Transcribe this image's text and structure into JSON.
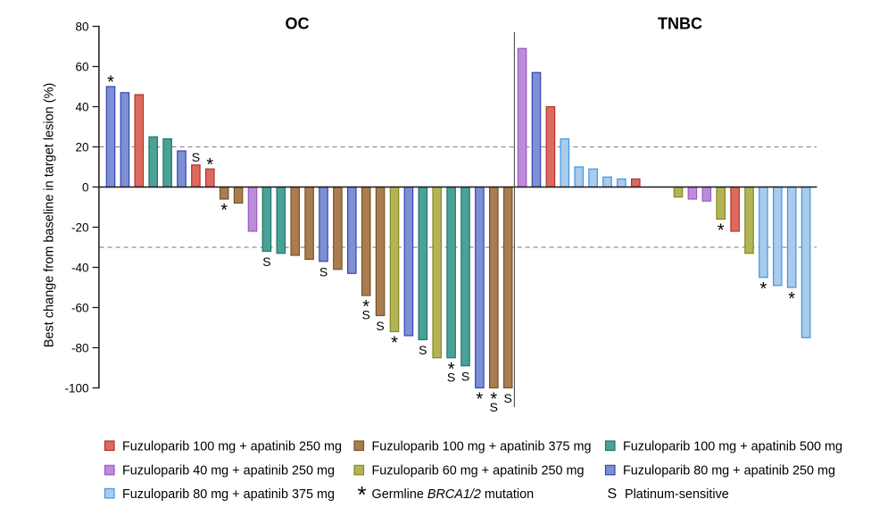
{
  "chart_data": {
    "type": "bar",
    "title": "",
    "ylabel": "Best change from baseline in target lesion (%)",
    "ylim": [
      -100,
      80
    ],
    "yticks": [
      80,
      60,
      40,
      20,
      0,
      -20,
      -40,
      -60,
      -80,
      -100
    ],
    "reference_lines": [
      20,
      -30
    ],
    "series": {
      "f100a250": {
        "label": "Fuzuloparib 100 mg + apatinib 250 mg",
        "fill": "#DC6A60",
        "edge": "#B23327"
      },
      "f100a375": {
        "label": "Fuzuloparib 100 mg + apatinib 375 mg",
        "fill": "#A97D50",
        "edge": "#7A5224"
      },
      "f100a500": {
        "label": "Fuzuloparib 100 mg + apatinib 500 mg",
        "fill": "#4AA198",
        "edge": "#217568"
      },
      "f40a250": {
        "label": "Fuzuloparib 40 mg + apatinib 250 mg",
        "fill": "#BC8CD9",
        "edge": "#9A58C8"
      },
      "f60a250": {
        "label": "Fuzuloparib 60 mg + apatinib 250 mg",
        "fill": "#B3B455",
        "edge": "#85881F"
      },
      "f80a250": {
        "label": "Fuzuloparib 80 mg + apatinib 250 mg",
        "fill": "#7E8FD3",
        "edge": "#3544B5"
      },
      "f80a375": {
        "label": "Fuzuloparib 80 mg + apatinib 375 mg",
        "fill": "#A9CBEC",
        "edge": "#3F95E4"
      }
    },
    "markers": {
      "asterisk": {
        "symbol": "*",
        "label_prefix": "Germline ",
        "label_italic": "BRCA1/2",
        "label_suffix": " mutation"
      },
      "platinum": {
        "symbol": "S",
        "label": "Platinum-sensitive"
      }
    },
    "legend_rows": [
      [
        "f100a250",
        "f100a375",
        "f100a500"
      ],
      [
        "f40a250",
        "f60a250",
        "f80a250"
      ],
      [
        "f80a375",
        "asterisk",
        "platinum"
      ]
    ],
    "panels": [
      {
        "title": "OC",
        "bars": [
          {
            "value": 50,
            "series": "f80a250",
            "marks": [
              "*"
            ]
          },
          {
            "value": 47,
            "series": "f80a250",
            "marks": []
          },
          {
            "value": 46,
            "series": "f100a250",
            "marks": []
          },
          {
            "value": 25,
            "series": "f100a500",
            "marks": []
          },
          {
            "value": 24,
            "series": "f100a500",
            "marks": []
          },
          {
            "value": 18,
            "series": "f80a250",
            "marks": []
          },
          {
            "value": 11,
            "series": "f100a250",
            "marks": [
              "S"
            ]
          },
          {
            "value": 9,
            "series": "f100a250",
            "marks": [
              "*"
            ]
          },
          {
            "value": -6,
            "series": "f100a375",
            "marks": [
              "*"
            ]
          },
          {
            "value": -8,
            "series": "f100a375",
            "marks": []
          },
          {
            "value": -22,
            "series": "f40a250",
            "marks": []
          },
          {
            "value": -32,
            "series": "f100a500",
            "marks": [
              "S"
            ]
          },
          {
            "value": -33,
            "series": "f100a500",
            "marks": []
          },
          {
            "value": -34,
            "series": "f100a375",
            "marks": []
          },
          {
            "value": -36,
            "series": "f100a375",
            "marks": []
          },
          {
            "value": -37,
            "series": "f80a250",
            "marks": [
              "S"
            ]
          },
          {
            "value": -41,
            "series": "f100a375",
            "marks": []
          },
          {
            "value": -43,
            "series": "f80a250",
            "marks": []
          },
          {
            "value": -54,
            "series": "f100a375",
            "marks": [
              "*",
              "S"
            ]
          },
          {
            "value": -64,
            "series": "f100a375",
            "marks": [
              "S"
            ]
          },
          {
            "value": -72,
            "series": "f60a250",
            "marks": [
              "*"
            ]
          },
          {
            "value": -74,
            "series": "f80a250",
            "marks": []
          },
          {
            "value": -76,
            "series": "f100a500",
            "marks": [
              "S"
            ]
          },
          {
            "value": -85,
            "series": "f60a250",
            "marks": []
          },
          {
            "value": -85,
            "series": "f100a500",
            "marks": [
              "*",
              "S"
            ]
          },
          {
            "value": -89,
            "series": "f100a500",
            "marks": [
              "S"
            ]
          },
          {
            "value": -100,
            "series": "f80a250",
            "marks": [
              "*"
            ]
          },
          {
            "value": -100,
            "series": "f100a375",
            "marks": [
              "*",
              "S"
            ]
          },
          {
            "value": -100,
            "series": "f100a375",
            "marks": [
              "S"
            ]
          }
        ]
      },
      {
        "title": "TNBC",
        "gap_after_index": 8,
        "gap_slots": 2,
        "bars": [
          {
            "value": 69,
            "series": "f40a250",
            "marks": []
          },
          {
            "value": 57,
            "series": "f80a250",
            "marks": []
          },
          {
            "value": 40,
            "series": "f100a250",
            "marks": []
          },
          {
            "value": 24,
            "series": "f80a375",
            "marks": []
          },
          {
            "value": 10,
            "series": "f80a375",
            "marks": []
          },
          {
            "value": 9,
            "series": "f80a375",
            "marks": []
          },
          {
            "value": 5,
            "series": "f80a375",
            "marks": []
          },
          {
            "value": 4,
            "series": "f80a375",
            "marks": []
          },
          {
            "value": 4,
            "series": "f100a250",
            "marks": []
          },
          {
            "value": -5,
            "series": "f60a250",
            "marks": []
          },
          {
            "value": -6,
            "series": "f40a250",
            "marks": []
          },
          {
            "value": -7,
            "series": "f40a250",
            "marks": []
          },
          {
            "value": -16,
            "series": "f60a250",
            "marks": [
              "*"
            ]
          },
          {
            "value": -22,
            "series": "f100a250",
            "marks": []
          },
          {
            "value": -33,
            "series": "f60a250",
            "marks": []
          },
          {
            "value": -45,
            "series": "f80a375",
            "marks": [
              "*"
            ]
          },
          {
            "value": -49,
            "series": "f80a375",
            "marks": []
          },
          {
            "value": -50,
            "series": "f80a375",
            "marks": [
              "*"
            ]
          },
          {
            "value": -75,
            "series": "f80a375",
            "marks": []
          }
        ]
      }
    ]
  }
}
